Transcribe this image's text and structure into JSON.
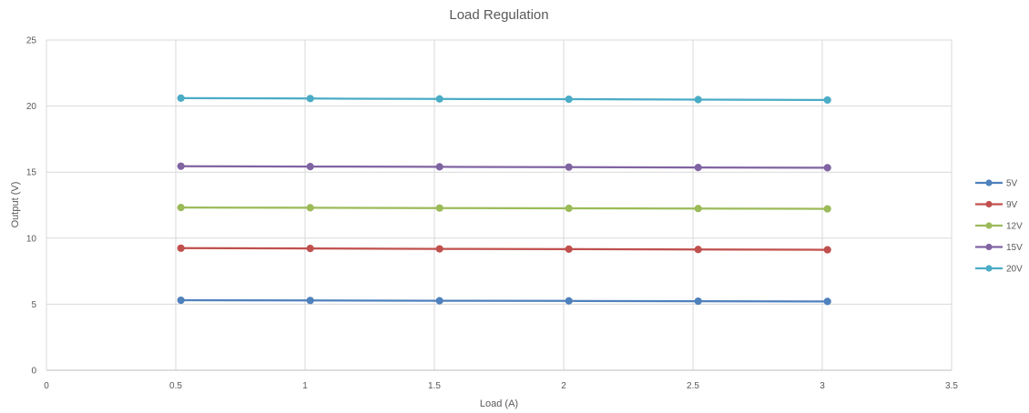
{
  "chart_data": {
    "type": "scatter",
    "title": "Load Regulation",
    "xlabel": "Load (A)",
    "ylabel": "Output (V)",
    "xlim": [
      0,
      3.5
    ],
    "ylim": [
      0,
      25
    ],
    "x_ticks": [
      "0",
      "0.5",
      "1",
      "1.5",
      "2",
      "2.5",
      "3",
      "3.5"
    ],
    "y_ticks": [
      "0",
      "5",
      "10",
      "15",
      "20",
      "25"
    ],
    "grid": "vertical and horizontal",
    "legend_position": "right",
    "series": [
      {
        "name": "5V",
        "color": "#4F81BD",
        "x": [
          0.52,
          1.02,
          1.52,
          2.02,
          2.52,
          3.02
        ],
        "y": [
          5.3,
          5.28,
          5.26,
          5.25,
          5.23,
          5.21
        ]
      },
      {
        "name": "9V",
        "color": "#C0504D",
        "x": [
          0.52,
          1.02,
          1.52,
          2.02,
          2.52,
          3.02
        ],
        "y": [
          9.24,
          9.22,
          9.19,
          9.17,
          9.14,
          9.12
        ]
      },
      {
        "name": "12V",
        "color": "#9BBB59",
        "x": [
          0.52,
          1.02,
          1.52,
          2.02,
          2.52,
          3.02
        ],
        "y": [
          12.32,
          12.3,
          12.28,
          12.26,
          12.24,
          12.22
        ]
      },
      {
        "name": "15V",
        "color": "#8064A2",
        "x": [
          0.52,
          1.02,
          1.52,
          2.02,
          2.52,
          3.02
        ],
        "y": [
          15.45,
          15.42,
          15.4,
          15.38,
          15.35,
          15.33
        ]
      },
      {
        "name": "20V",
        "color": "#4BACC6",
        "x": [
          0.52,
          1.02,
          1.52,
          2.02,
          2.52,
          3.02
        ],
        "y": [
          20.6,
          20.57,
          20.54,
          20.52,
          20.49,
          20.46
        ]
      }
    ]
  }
}
